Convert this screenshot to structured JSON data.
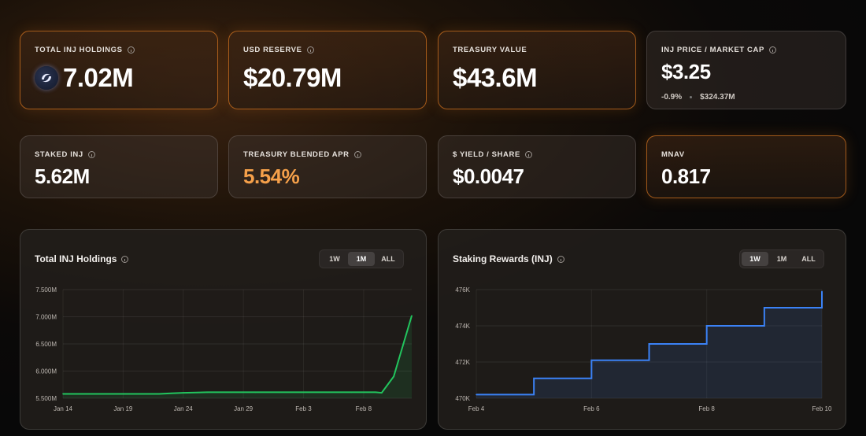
{
  "metrics": {
    "total_inj": {
      "label": "TOTAL INJ HOLDINGS",
      "value": "7.02M"
    },
    "usd_reserve": {
      "label": "USD RESERVE",
      "value": "$20.79M"
    },
    "treasury_value": {
      "label": "TREASURY VALUE",
      "value": "$43.6M"
    },
    "inj_price": {
      "label": "INJ PRICE / MARKET CAP",
      "value": "$3.25",
      "change": "-0.9%",
      "market_cap": "$324.37M"
    },
    "staked_inj": {
      "label": "STAKED INJ",
      "value": "5.62M"
    },
    "blended_apr": {
      "label": "TREASURY BLENDED APR",
      "value": "5.54%"
    },
    "yield_share": {
      "label": "$ YIELD / SHARE",
      "value": "$0.0047"
    },
    "mnav": {
      "label": "MNAV",
      "value": "0.817"
    }
  },
  "charts": {
    "holdings": {
      "title": "Total INJ Holdings",
      "ranges": [
        "1W",
        "1M",
        "ALL"
      ],
      "active_range": "1M"
    },
    "staking": {
      "title": "Staking Rewards (INJ)",
      "ranges": [
        "1W",
        "1M",
        "ALL"
      ],
      "active_range": "1W"
    }
  },
  "colors": {
    "accent": "#f5a04a",
    "green_line": "#22c55e",
    "blue_line": "#3b82f6"
  },
  "chart_data": [
    {
      "type": "line",
      "title": "Total INJ Holdings",
      "x": [
        "Jan 14",
        "Jan 16",
        "Jan 18",
        "Jan 20",
        "Jan 22",
        "Jan 23",
        "Jan 24",
        "Jan 26",
        "Jan 28",
        "Jan 30",
        "Feb 1",
        "Feb 3",
        "Feb 5",
        "Feb 7",
        "Feb 8",
        "Feb 9",
        "Feb 10",
        "Feb 11",
        "Feb 12"
      ],
      "x_pos": [
        0,
        2,
        4,
        6,
        8,
        9,
        10,
        12,
        14,
        16,
        18,
        20,
        22,
        24,
        25,
        26,
        26.5,
        27.5,
        29
      ],
      "values": [
        5.58,
        5.58,
        5.58,
        5.58,
        5.58,
        5.59,
        5.6,
        5.61,
        5.61,
        5.61,
        5.61,
        5.61,
        5.61,
        5.61,
        5.61,
        5.61,
        5.6,
        5.9,
        7.02
      ],
      "x_ticks": [
        "Jan 14",
        "Jan 19",
        "Jan 24",
        "Jan 29",
        "Feb 3",
        "Feb 8"
      ],
      "y_ticks": [
        "5.500M",
        "6.000M",
        "6.500M",
        "7.000M",
        "7.500M"
      ],
      "ylim": [
        5.5,
        7.5
      ],
      "unit": "M INJ"
    },
    {
      "type": "area",
      "title": "Staking Rewards (INJ)",
      "x": [
        "Feb 4",
        "Feb 5",
        "Feb 6",
        "Feb 7",
        "Feb 8",
        "Feb 9",
        "Feb 10"
      ],
      "values": [
        470.2,
        471.1,
        472.1,
        473.0,
        474.0,
        475.0,
        475.9
      ],
      "x_ticks": [
        "Feb 4",
        "Feb 6",
        "Feb 8",
        "Feb 10"
      ],
      "y_ticks": [
        "470K",
        "472K",
        "474K",
        "476K"
      ],
      "ylim": [
        470,
        476
      ],
      "unit": "K INJ"
    }
  ]
}
